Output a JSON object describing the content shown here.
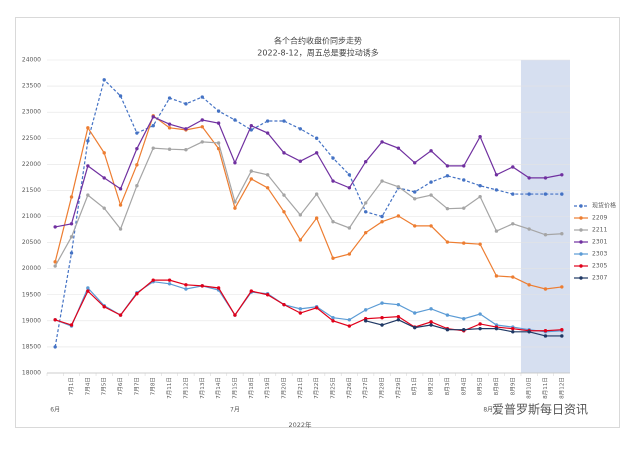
{
  "chart_data": {
    "type": "line",
    "title": "各个合约收盘价同步走势",
    "subtitle": "2022-8-12，周五总是要拉动诱多",
    "categories": [
      null,
      "7月1日",
      "7月4日",
      "7月5日",
      "7月6日",
      "7月7日",
      "7月8日",
      "7月11日",
      "7月12日",
      "7月13日",
      "7月14日",
      "7月15日",
      "7月18日",
      "7月19日",
      "7月20日",
      "7月21日",
      "7月22日",
      "7月25日",
      "7月26日",
      "7月27日",
      "7月28日",
      "7月29日",
      "8月1日",
      "8月2日",
      "8月3日",
      "8月4日",
      "8月5日",
      "8月8日",
      "8月9日",
      "8月10日",
      "8月11日",
      "8月12日"
    ],
    "x_groups": [
      "6月",
      "7月",
      "8月"
    ],
    "x_label": "2022年",
    "highlight_from": "8月10日",
    "highlight_color": "#d6dff0",
    "ylim": [
      18000,
      24000
    ],
    "yticks": [
      18000,
      18500,
      19000,
      19500,
      20000,
      20500,
      21000,
      21500,
      22000,
      22500,
      23000,
      23500,
      24000
    ],
    "grid": true,
    "legend": "right",
    "series": [
      {
        "name": "现货价格",
        "color": "#4472c4",
        "dashed": true,
        "values": [
          18500,
          20300,
          22450,
          23620,
          23310,
          22600,
          22740,
          23270,
          23160,
          23290,
          23020,
          22850,
          22660,
          22830,
          22830,
          22680,
          22500,
          22120,
          21800,
          21090,
          21000,
          21550,
          21470,
          21660,
          21780,
          21700,
          21590,
          21510,
          21430,
          21430,
          21430,
          21430
        ]
      },
      {
        "name": "2209",
        "color": "#ed7d31",
        "values": [
          20130,
          21375,
          22700,
          22220,
          21220,
          21990,
          22930,
          22700,
          22660,
          22720,
          22300,
          21160,
          21720,
          21550,
          21090,
          20550,
          20970,
          20200,
          20280,
          20690,
          20900,
          21010,
          20820,
          20820,
          20510,
          20490,
          20470,
          19860,
          19840,
          19690,
          19610,
          19650
        ]
      },
      {
        "name": "2211",
        "color": "#a5a5a5",
        "values": [
          20050,
          20610,
          21410,
          21160,
          20760,
          21590,
          22310,
          22290,
          22280,
          22430,
          22410,
          21280,
          21870,
          21800,
          21410,
          21030,
          21430,
          20900,
          20780,
          21260,
          21680,
          21570,
          21340,
          21410,
          21150,
          21160,
          21380,
          20720,
          20860,
          20760,
          20650,
          20670
        ]
      },
      {
        "name": "2301",
        "color": "#7030a0",
        "values": [
          20800,
          20860,
          21970,
          21740,
          21530,
          22300,
          22910,
          22770,
          22680,
          22850,
          22790,
          22030,
          22740,
          22600,
          22220,
          22060,
          22220,
          21680,
          21550,
          22050,
          22430,
          22310,
          22030,
          22260,
          21970,
          21970,
          22530,
          21800,
          21950,
          21740,
          21740,
          21800
        ]
      },
      {
        "name": "2303",
        "color": "#5b9bd5",
        "values": [
          19020,
          18900,
          19630,
          19290,
          19110,
          19540,
          19750,
          19710,
          19610,
          19670,
          19590,
          19110,
          19550,
          19520,
          19310,
          19230,
          19270,
          19060,
          19020,
          19210,
          19340,
          19310,
          19150,
          19230,
          19110,
          19040,
          19130,
          18920,
          18880,
          18830,
          18790,
          18810
        ]
      },
      {
        "name": "2305",
        "color": "#e0001a",
        "values": [
          19020,
          18920,
          19570,
          19270,
          19110,
          19520,
          19780,
          19780,
          19690,
          19670,
          19630,
          19110,
          19570,
          19500,
          19310,
          19150,
          19250,
          19000,
          18900,
          19040,
          19060,
          19080,
          18880,
          18980,
          18850,
          18810,
          18940,
          18880,
          18850,
          18810,
          18810,
          18830
        ]
      },
      {
        "name": "2307",
        "color": "#1f3864",
        "values": [
          null,
          null,
          null,
          null,
          null,
          null,
          null,
          null,
          null,
          null,
          null,
          null,
          null,
          null,
          null,
          null,
          null,
          null,
          null,
          19000,
          18920,
          19020,
          18870,
          18920,
          18830,
          18830,
          18850,
          18850,
          18790,
          18790,
          18710,
          18710
        ]
      }
    ],
    "watermark": "爱普罗斯每日资讯"
  }
}
